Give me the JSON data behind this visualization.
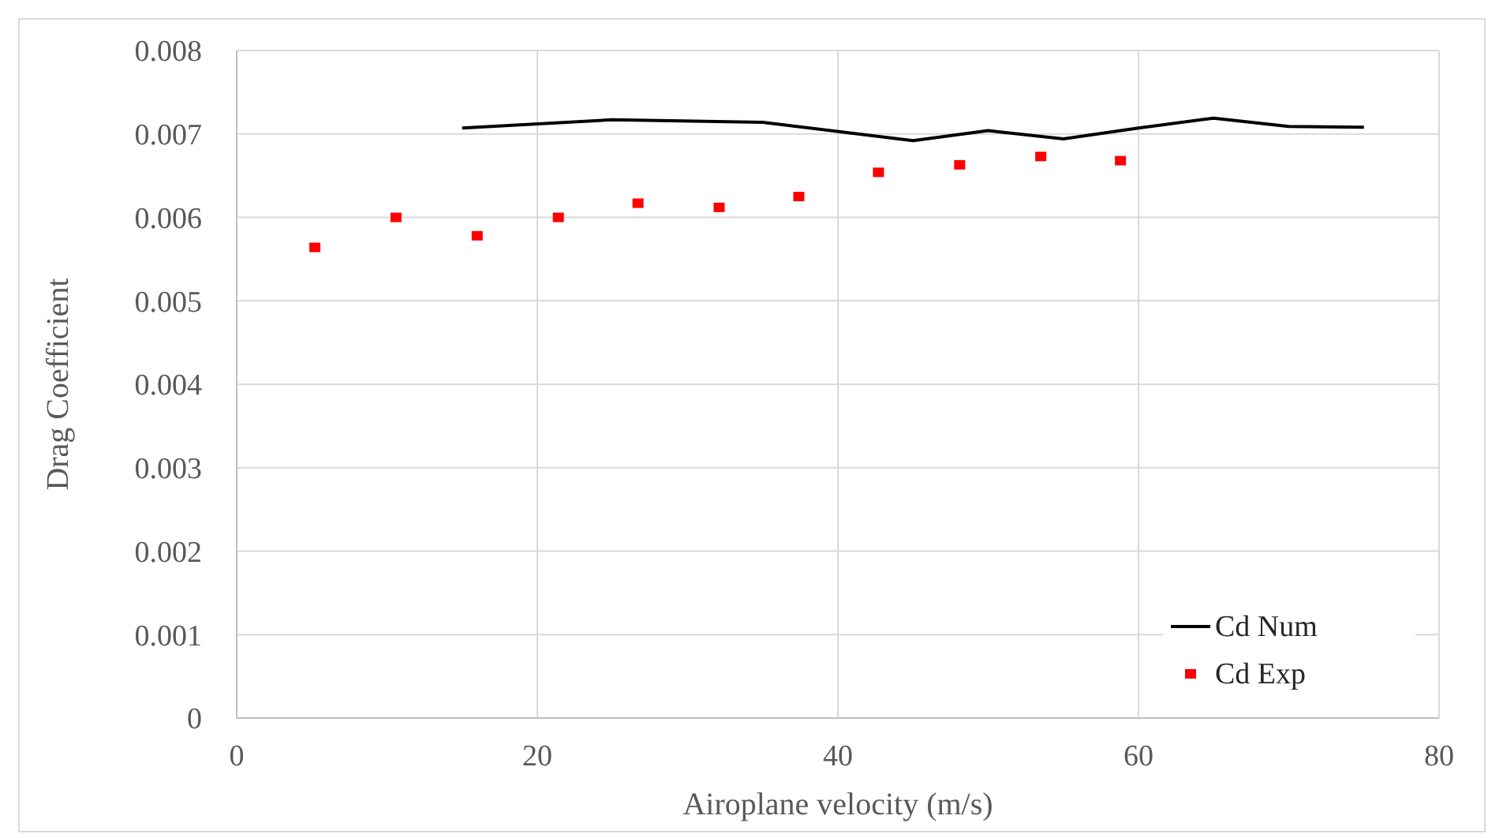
{
  "chart_data": {
    "type": "line",
    "xlabel": "Airoplane velocity (m/s)",
    "ylabel": "Drag Coefficient",
    "xlim": [
      0,
      80
    ],
    "xticks": [
      0,
      20,
      40,
      60,
      80
    ],
    "ylim": [
      0,
      0.008
    ],
    "yticks": [
      0,
      0.001,
      0.002,
      0.003,
      0.004,
      0.005,
      0.006,
      0.007,
      0.008
    ],
    "grid": true,
    "legend": "bottom right",
    "series": [
      {
        "name": "Cd Num",
        "color": "#000000",
        "marker": "none",
        "line_style": "solid",
        "x": [
          15,
          25,
          35,
          45,
          50,
          55,
          60,
          65,
          70,
          75
        ],
        "values": [
          0.00707,
          0.00717,
          0.00714,
          0.00692,
          0.00704,
          0.00694,
          0.00707,
          0.00719,
          0.00709,
          0.00708
        ]
      },
      {
        "name": "Cd Exp",
        "type": "scatter",
        "color": "#ff0000",
        "marker": "square",
        "x": [
          5.2,
          10.6,
          16.0,
          21.4,
          26.7,
          32.1,
          37.4,
          42.7,
          48.1,
          53.5,
          58.8
        ],
        "values": [
          0.00564,
          0.006,
          0.00578,
          0.006,
          0.00617,
          0.00612,
          0.00625,
          0.00654,
          0.00663,
          0.00673,
          0.00668
        ]
      }
    ]
  }
}
